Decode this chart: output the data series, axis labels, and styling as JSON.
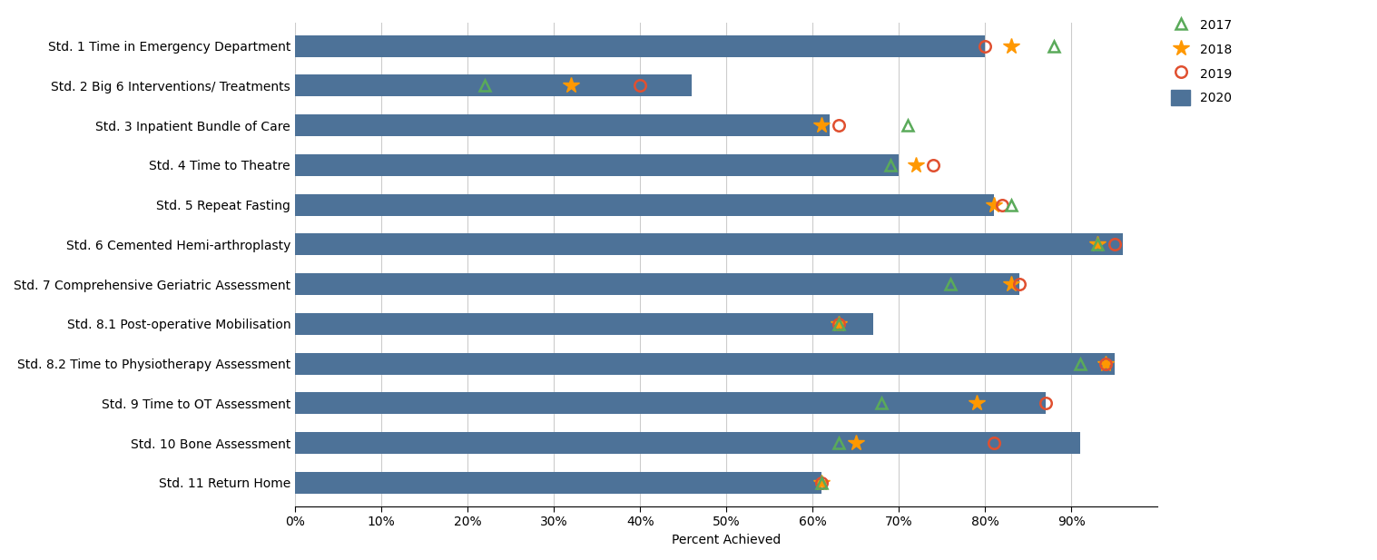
{
  "standards": [
    "Std. 1 Time in Emergency Department",
    "Std. 2 Big 6 Interventions/ Treatments",
    "Std. 3 Inpatient Bundle of Care",
    "Std. 4 Time to Theatre",
    "Std. 5 Repeat Fasting",
    "Std. 6 Cemented Hemi-arthroplasty",
    "Std. 7 Comprehensive Geriatric Assessment",
    "Std. 8.1 Post-operative Mobilisation",
    "Std. 8.2 Time to Physiotherapy Assessment",
    "Std. 9 Time to OT Assessment",
    "Std. 10 Bone Assessment",
    "Std. 11 Return Home"
  ],
  "bar_2020": [
    80,
    46,
    62,
    70,
    81,
    96,
    84,
    67,
    95,
    87,
    91,
    61
  ],
  "val_2019": [
    80,
    40,
    63,
    74,
    82,
    95,
    84,
    63,
    94,
    87,
    81,
    61
  ],
  "val_2018": [
    83,
    32,
    61,
    72,
    81,
    93,
    83,
    63,
    94,
    79,
    65,
    61
  ],
  "val_2017": [
    88,
    22,
    71,
    69,
    83,
    93,
    76,
    63,
    91,
    68,
    63,
    61
  ],
  "bar_color": "#4d7298",
  "color_2017": "#5aaa5a",
  "color_2018": "#FF9800",
  "color_2019": "#E05030",
  "xlabel": "Percent Achieved",
  "xlim_max": 100,
  "xticks": [
    0,
    10,
    20,
    30,
    40,
    50,
    60,
    70,
    80,
    90
  ],
  "xticklabels": [
    "0%",
    "10%",
    "20%",
    "30%",
    "40%",
    "50%",
    "60%",
    "70%",
    "80%",
    "90%"
  ],
  "label_fontsize": 10,
  "tick_fontsize": 10,
  "bar_height": 0.55,
  "marker_size_tri": 9,
  "marker_size_star": 13,
  "marker_size_circ": 9,
  "marker_edge_width": 1.8
}
